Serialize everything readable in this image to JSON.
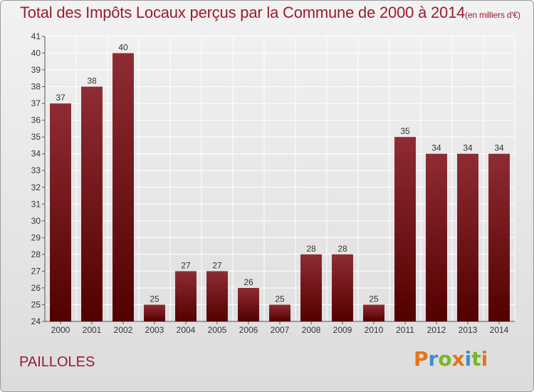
{
  "title": "Total des Impôts Locaux perçus par la Commune de 2000 à 2014",
  "title_unit": "(en milliers d'€)",
  "commune": "PAILLOLES",
  "logo": {
    "text": "Proxiti",
    "colors": [
      "#e8731a",
      "#3b8fd0",
      "#7ab526",
      "#e8731a",
      "#3b8fd0",
      "#7ab526",
      "#e8731a"
    ]
  },
  "chart_data": {
    "type": "bar",
    "categories": [
      "2000",
      "2001",
      "2002",
      "2003",
      "2004",
      "2005",
      "2006",
      "2007",
      "2008",
      "2009",
      "2010",
      "2011",
      "2012",
      "2013",
      "2014"
    ],
    "values": [
      37,
      38,
      40,
      25,
      27,
      27,
      26,
      25,
      28,
      28,
      25,
      35,
      34,
      34,
      34
    ],
    "title": "Total des Impôts Locaux perçus par la Commune de 2000 à 2014",
    "ylim": [
      24,
      41
    ],
    "yticks": [
      24,
      25,
      26,
      27,
      28,
      29,
      30,
      31,
      32,
      33,
      34,
      35,
      36,
      37,
      38,
      39,
      40,
      41
    ],
    "grid": true,
    "bar_color_top": "#8e2c33",
    "bar_color_bottom": "#520000"
  }
}
